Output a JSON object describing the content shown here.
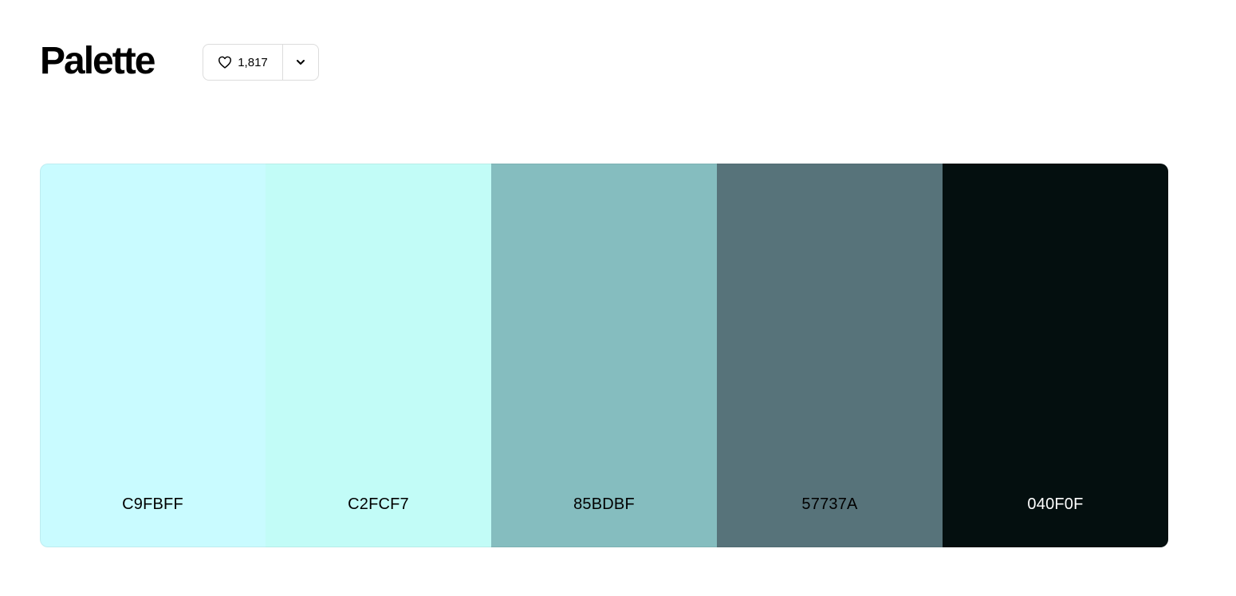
{
  "header": {
    "title": "Palette"
  },
  "actions": {
    "like_count": "1,817",
    "like_icon": "heart-icon",
    "more_icon": "chevron-down-icon"
  },
  "palette": {
    "swatches": [
      {
        "code": "C9FBFF",
        "color": "#C9FBFF",
        "text_color": "#000000"
      },
      {
        "code": "C2FCF7",
        "color": "#C2FCF7",
        "text_color": "#000000"
      },
      {
        "code": "85BDBF",
        "color": "#85BDBF",
        "text_color": "#000000"
      },
      {
        "code": "57737A",
        "color": "#57737A",
        "text_color": "#000000"
      },
      {
        "code": "040F0F",
        "color": "#040F0F",
        "text_color": "#ffffff"
      }
    ]
  }
}
